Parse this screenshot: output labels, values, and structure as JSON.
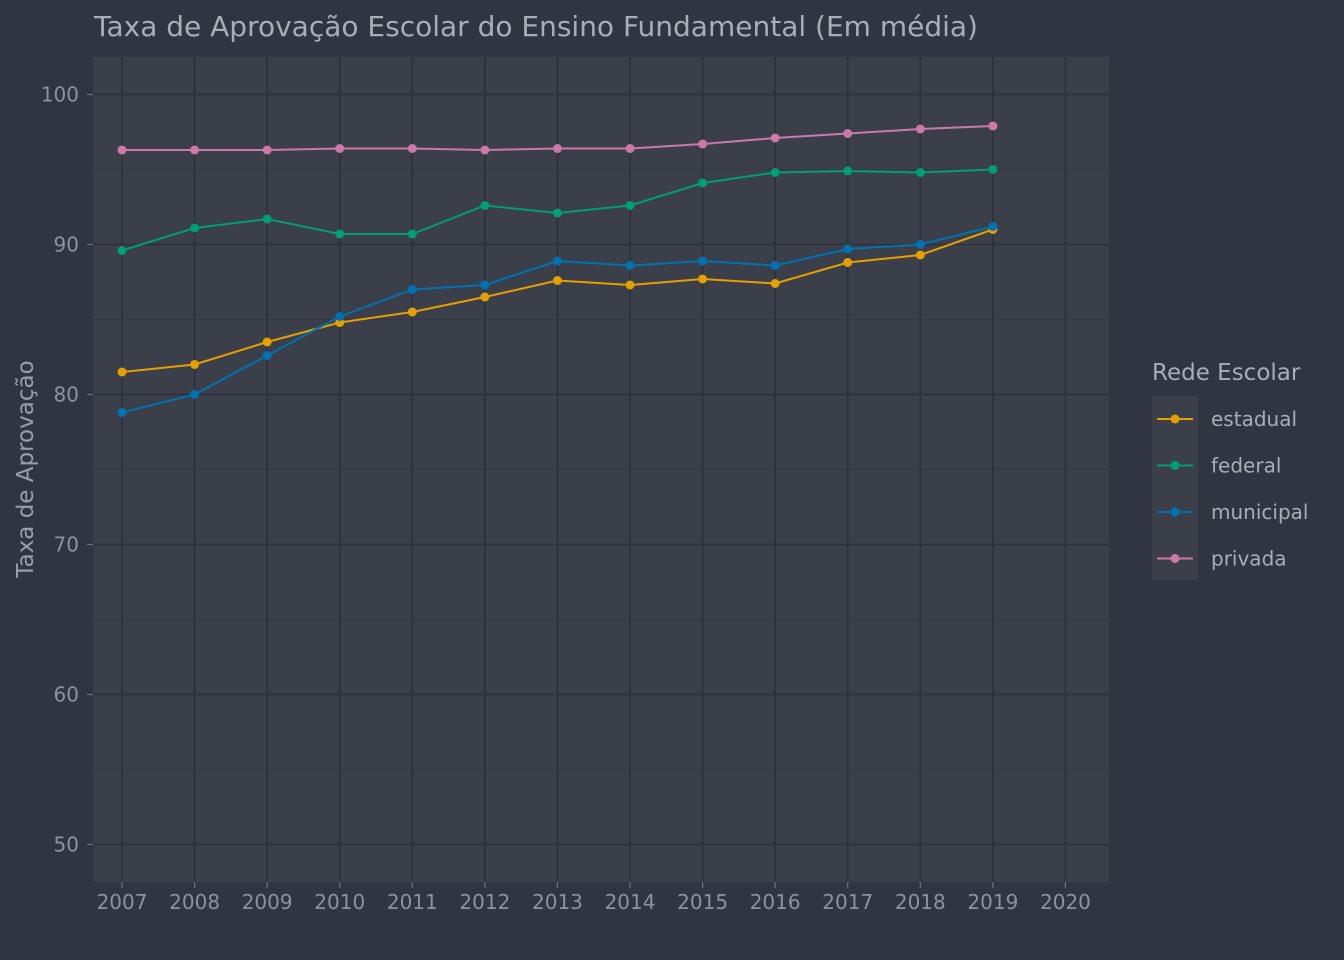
{
  "chart_data": {
    "type": "line",
    "title": "Taxa de Aprovação Escolar do Ensino Fundamental (Em média)",
    "xlabel": "",
    "ylabel": "Taxa de Aprovação",
    "x": [
      2007,
      2008,
      2009,
      2010,
      2011,
      2012,
      2013,
      2014,
      2015,
      2016,
      2017,
      2018,
      2019
    ],
    "x_ticks": [
      2007,
      2008,
      2009,
      2010,
      2011,
      2012,
      2013,
      2014,
      2015,
      2016,
      2017,
      2018,
      2019,
      2020
    ],
    "y_ticks": [
      50,
      60,
      70,
      80,
      90,
      100
    ],
    "xlim": [
      2006.6,
      2020.6
    ],
    "ylim": [
      47.5,
      102.5
    ],
    "grid": true,
    "legend_title": "Rede Escolar",
    "legend_position": "right",
    "series": [
      {
        "name": "estadual",
        "color": "#E69F00",
        "values": [
          81.5,
          82.0,
          83.5,
          84.8,
          85.5,
          86.5,
          87.6,
          87.3,
          87.7,
          87.4,
          88.8,
          89.3,
          91.0
        ]
      },
      {
        "name": "federal",
        "color": "#009E73",
        "values": [
          89.6,
          91.1,
          91.7,
          90.7,
          90.7,
          92.6,
          92.1,
          92.6,
          94.1,
          94.8,
          94.9,
          94.8,
          95.0
        ]
      },
      {
        "name": "municipal",
        "color": "#0072B2",
        "values": [
          78.8,
          80.0,
          82.6,
          85.2,
          87.0,
          87.3,
          88.9,
          88.6,
          88.9,
          88.6,
          89.7,
          90.0,
          91.2
        ]
      },
      {
        "name": "privada",
        "color": "#CC79A7",
        "values": [
          96.3,
          96.3,
          96.3,
          96.4,
          96.4,
          96.3,
          96.4,
          96.4,
          96.7,
          97.1,
          97.4,
          97.7,
          97.9
        ]
      }
    ]
  }
}
